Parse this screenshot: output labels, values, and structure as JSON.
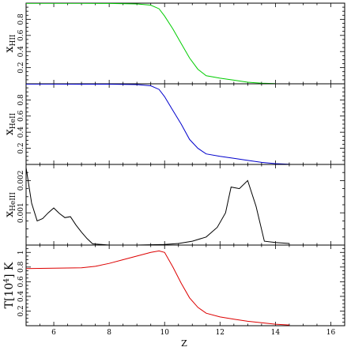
{
  "chart_data": [
    {
      "type": "line",
      "panel": "xHII",
      "ylabel_main": "x",
      "ylabel_sub": "HII",
      "ylim": [
        0,
        1
      ],
      "yticks": [
        0.2,
        0.4,
        0.6,
        0.8
      ],
      "ytick_labels": [
        "0.2",
        "0.4",
        "0.6",
        "0.8"
      ],
      "color": "#00cc00",
      "series": [
        {
          "x": [
            5,
            6,
            7,
            8,
            9,
            9.5,
            9.8,
            10.0,
            10.3,
            10.6,
            10.9,
            11.2,
            11.5,
            12.0,
            12.5,
            13.0,
            13.5,
            14.0
          ],
          "y": [
            0.998,
            0.998,
            0.997,
            0.996,
            0.99,
            0.975,
            0.93,
            0.84,
            0.68,
            0.5,
            0.32,
            0.18,
            0.1,
            0.07,
            0.045,
            0.02,
            0.008,
            0.002
          ]
        }
      ]
    },
    {
      "type": "line",
      "panel": "xHeII",
      "ylabel_main": "x",
      "ylabel_sub": "HeII",
      "ylim": [
        0,
        1
      ],
      "yticks": [
        0.2,
        0.4,
        0.6,
        0.8
      ],
      "ytick_labels": [
        "0.2",
        "0.4",
        "0.6",
        "0.8"
      ],
      "color": "#0000cc",
      "series": [
        {
          "x": [
            5,
            6,
            7,
            8,
            9,
            9.5,
            9.8,
            10.0,
            10.3,
            10.6,
            10.9,
            11.2,
            11.5,
            12.0,
            12.5,
            13.0,
            13.5,
            14.0,
            14.5
          ],
          "y": [
            0.996,
            0.996,
            0.995,
            0.995,
            0.99,
            0.975,
            0.93,
            0.84,
            0.67,
            0.5,
            0.31,
            0.2,
            0.13,
            0.1,
            0.075,
            0.05,
            0.025,
            0.01,
            0.002
          ]
        }
      ]
    },
    {
      "type": "line",
      "panel": "xHeIII",
      "ylabel_main": "x",
      "ylabel_sub": "HeIII",
      "ylim": [
        0,
        0.0025
      ],
      "yticks": [
        0.001,
        0.002
      ],
      "ytick_labels": [
        "0.001",
        "0.002"
      ],
      "color": "#000000",
      "series": [
        {
          "x": [
            5.0,
            5.2,
            5.4,
            5.6,
            5.8,
            6.0,
            6.2,
            6.4,
            6.6,
            6.8,
            7.0,
            7.2,
            7.4,
            8,
            9,
            10,
            10.5,
            11.0,
            11.5,
            11.9,
            12.2,
            12.4,
            12.7,
            13.0,
            13.3,
            13.6,
            14.0,
            14.5
          ],
          "y": [
            0.0024,
            0.0013,
            0.00075,
            0.00082,
            0.001,
            0.00115,
            0.00098,
            0.00085,
            0.00088,
            0.00062,
            0.0004,
            0.0002,
            4e-05,
            0,
            0,
            2e-05,
            5e-05,
            0.00012,
            0.00025,
            0.00055,
            0.001,
            0.0018,
            0.00175,
            0.002,
            0.0012,
            0.00012,
            8e-05,
            5e-05
          ]
        }
      ]
    },
    {
      "type": "line",
      "panel": "T",
      "ylabel_main": "T[10",
      "ylabel_sup": "4",
      "ylabel_tail": "] K",
      "ylim": [
        0,
        1.1
      ],
      "yticks": [
        0.2,
        0.4,
        0.6,
        0.8,
        1.0
      ],
      "ytick_labels": [
        "0.2",
        "0.4",
        "0.6",
        "0.8",
        "1"
      ],
      "color": "#dd0000",
      "series": [
        {
          "x": [
            5,
            6,
            7,
            7.5,
            8,
            8.5,
            9,
            9.5,
            9.8,
            10.0,
            10.3,
            10.6,
            10.9,
            11.2,
            11.5,
            12.0,
            12.5,
            13.0,
            13.5,
            14.0,
            14.5
          ],
          "y": [
            0.78,
            0.785,
            0.79,
            0.81,
            0.85,
            0.9,
            0.95,
            1.0,
            1.02,
            1.0,
            0.8,
            0.58,
            0.38,
            0.25,
            0.17,
            0.12,
            0.09,
            0.06,
            0.04,
            0.02,
            0.01
          ]
        }
      ]
    }
  ],
  "xaxis": {
    "label": "Z",
    "xlim": [
      5,
      16.5
    ],
    "ticks": [
      6,
      8,
      10,
      12,
      14,
      16
    ],
    "tick_labels": [
      "6",
      "8",
      "10",
      "12",
      "14",
      "16"
    ],
    "minor_step": 0.5
  }
}
